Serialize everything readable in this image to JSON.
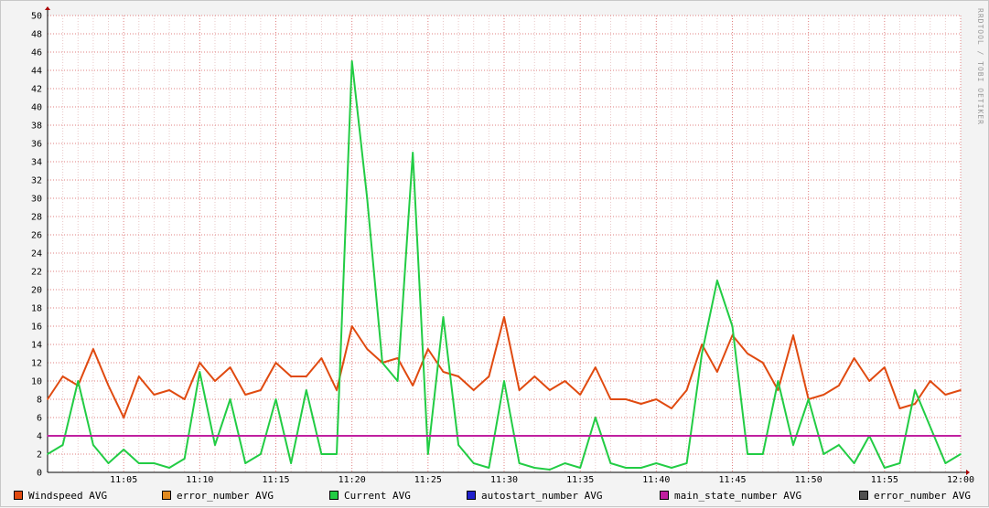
{
  "watermark": "RRDTOOL / TOBI OETIKER",
  "colors": {
    "windspeed": "#e04a10",
    "error_number": "#e08a20",
    "current": "#22cc44",
    "autostart_number": "#2020cc",
    "main_state_number": "#c020a0",
    "error_number_2": "#505050",
    "plot_bg": "#ffffff",
    "grid_minor": "#e8c8c8",
    "grid_major": "#e08080"
  },
  "legend": [
    {
      "label": "Windspeed AVG",
      "color": "#e04a10"
    },
    {
      "label": "error_number AVG",
      "color": "#e08a20"
    },
    {
      "label": "Current AVG",
      "color": "#22cc44"
    },
    {
      "label": "autostart_number AVG",
      "color": "#2020cc"
    },
    {
      "label": "main_state_number AVG",
      "color": "#c020a0"
    },
    {
      "label": "error_number AVG",
      "color": "#505050"
    }
  ],
  "chart_data": {
    "type": "line",
    "title": "",
    "xlabel": "",
    "ylabel": "",
    "ylim": [
      0,
      50
    ],
    "xlim": [
      "11:00",
      "12:00"
    ],
    "y_ticks": [
      "0",
      "2",
      "4",
      "6",
      "8",
      "10",
      "12",
      "14",
      "16",
      "18",
      "20",
      "22",
      "24",
      "26",
      "28",
      "30",
      "32",
      "34",
      "36",
      "38",
      "40",
      "42",
      "44",
      "46",
      "48",
      "50"
    ],
    "x_ticks": [
      "11:05",
      "11:10",
      "11:15",
      "11:20",
      "11:25",
      "11:30",
      "11:35",
      "11:40",
      "11:45",
      "11:50",
      "11:55",
      "12:00"
    ],
    "grid": true,
    "legend_position": "bottom",
    "series": [
      {
        "name": "Windspeed AVG",
        "color": "#e04a10",
        "x": [
          "11:00",
          "11:01",
          "11:02",
          "11:03",
          "11:04",
          "11:05",
          "11:06",
          "11:07",
          "11:08",
          "11:09",
          "11:10",
          "11:11",
          "11:12",
          "11:13",
          "11:14",
          "11:15",
          "11:16",
          "11:17",
          "11:18",
          "11:19",
          "11:20",
          "11:21",
          "11:22",
          "11:23",
          "11:24",
          "11:25",
          "11:26",
          "11:27",
          "11:28",
          "11:29",
          "11:30",
          "11:31",
          "11:32",
          "11:33",
          "11:34",
          "11:35",
          "11:36",
          "11:37",
          "11:38",
          "11:39",
          "11:40",
          "11:41",
          "11:42",
          "11:43",
          "11:44",
          "11:45",
          "11:46",
          "11:47",
          "11:48",
          "11:49",
          "11:50",
          "11:51",
          "11:52",
          "11:53",
          "11:54",
          "11:55",
          "11:56",
          "11:57",
          "11:58",
          "11:59",
          "12:00"
        ],
        "values": [
          8,
          10.5,
          9.5,
          13.5,
          9.5,
          6,
          10.5,
          8.5,
          9,
          8,
          12,
          10,
          11.5,
          8.5,
          9,
          12,
          10.5,
          10.5,
          12.5,
          9,
          16,
          13.5,
          12,
          12.5,
          9.5,
          13.5,
          11,
          10.5,
          9,
          10.5,
          17,
          9,
          10.5,
          9,
          10,
          8.5,
          11.5,
          8,
          8,
          7.5,
          8,
          7,
          9,
          14,
          11,
          15,
          13,
          12,
          9,
          15,
          8,
          8.5,
          9.5,
          12.5,
          10,
          11.5,
          7,
          7.5,
          10,
          8.5,
          9
        ]
      },
      {
        "name": "Current AVG",
        "color": "#22cc44",
        "x": [
          "11:00",
          "11:01",
          "11:02",
          "11:03",
          "11:04",
          "11:05",
          "11:06",
          "11:07",
          "11:08",
          "11:09",
          "11:10",
          "11:11",
          "11:12",
          "11:13",
          "11:14",
          "11:15",
          "11:16",
          "11:17",
          "11:18",
          "11:19",
          "11:20",
          "11:21",
          "11:22",
          "11:23",
          "11:24",
          "11:25",
          "11:26",
          "11:27",
          "11:28",
          "11:29",
          "11:30",
          "11:31",
          "11:32",
          "11:33",
          "11:34",
          "11:35",
          "11:36",
          "11:37",
          "11:38",
          "11:39",
          "11:40",
          "11:41",
          "11:42",
          "11:43",
          "11:44",
          "11:45",
          "11:46",
          "11:47",
          "11:48",
          "11:49",
          "11:50",
          "11:51",
          "11:52",
          "11:53",
          "11:54",
          "11:55",
          "11:56",
          "11:57",
          "11:58",
          "11:59",
          "12:00"
        ],
        "values": [
          2,
          3,
          10,
          3,
          1,
          2.5,
          1,
          1,
          0.5,
          1.5,
          11,
          3,
          8,
          1,
          2,
          8,
          1,
          9,
          2,
          2,
          45,
          30,
          12,
          10,
          35,
          2,
          17,
          3,
          1,
          0.5,
          10,
          1,
          0.5,
          0.3,
          1,
          0.5,
          6,
          1,
          0.5,
          0.5,
          1,
          0.5,
          1,
          13,
          21,
          16,
          2,
          2,
          10,
          3,
          8,
          2,
          3,
          1,
          4,
          0.5,
          1,
          9,
          5,
          1,
          2
        ]
      },
      {
        "name": "main_state_number AVG",
        "color": "#c020a0",
        "x": [
          "11:00",
          "12:00"
        ],
        "values": [
          4,
          4
        ]
      }
    ]
  }
}
